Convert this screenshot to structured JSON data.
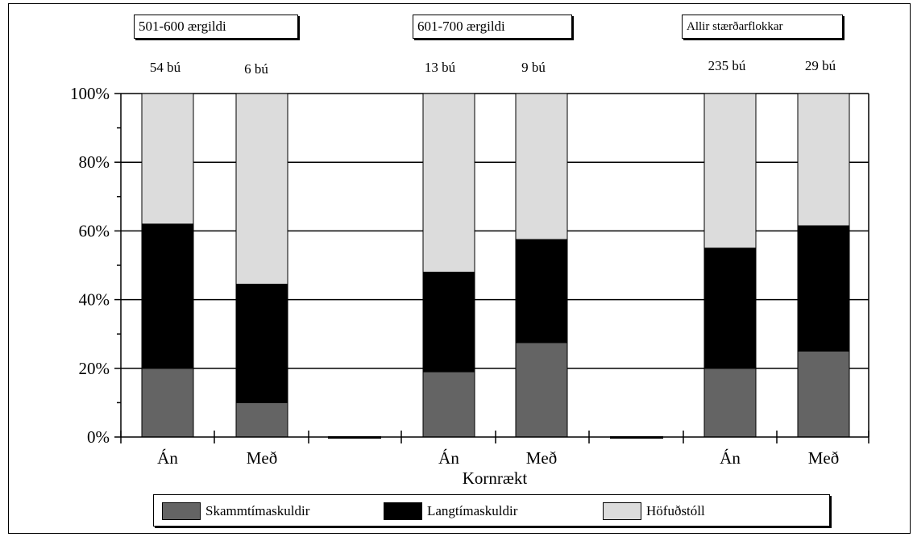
{
  "chart_data": {
    "type": "bar",
    "stacked": true,
    "percent": true,
    "xlabel": "Kornrækt",
    "ylim": [
      0,
      100
    ],
    "yticks": [
      "0%",
      "20%",
      "40%",
      "60%",
      "80%",
      "100%"
    ],
    "legend_position": "bottom",
    "groups": [
      {
        "title": "501-600 ærgildi",
        "bars": [
          {
            "label": "Án",
            "count": "54 bú",
            "values": [
              20,
              42,
              38
            ]
          },
          {
            "label": "Með",
            "count": "6 bú",
            "values": [
              10,
              34.5,
              55.5
            ]
          }
        ]
      },
      {
        "title": "601-700 ærgildi",
        "bars": [
          {
            "label": "Án",
            "count": "13 bú",
            "values": [
              19,
              29,
              52
            ]
          },
          {
            "label": "Með",
            "count": "9 bú",
            "values": [
              27.5,
              30,
              42.5
            ]
          }
        ]
      },
      {
        "title": "Allir stærðarflokkar",
        "bars": [
          {
            "label": "Án",
            "count": "235 bú",
            "values": [
              20,
              35,
              45
            ]
          },
          {
            "label": "Með",
            "count": "29 bú",
            "values": [
              25,
              36.5,
              38.5
            ]
          }
        ]
      }
    ],
    "series": [
      {
        "name": "Skammtímaskuldir",
        "color": "#646464"
      },
      {
        "name": "Langtímaskuldir",
        "color": "#000000"
      },
      {
        "name": "Höfuðstóll",
        "color": "#dcdcdc"
      }
    ]
  }
}
